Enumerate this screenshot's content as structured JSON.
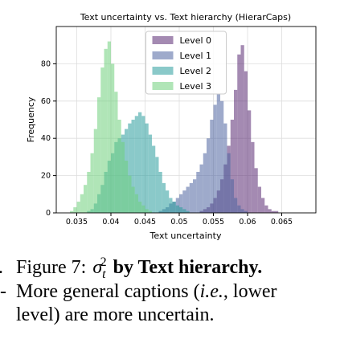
{
  "chart_data": {
    "type": "histogram",
    "title": "Text uncertainty vs. Text hierarchy (HierarCaps)",
    "xlabel": "Text uncertainty",
    "ylabel": "Frequency",
    "bins": [
      0.034,
      0.0345,
      0.035,
      0.0355,
      0.036,
      0.0365,
      0.037,
      0.0375,
      0.038,
      0.0385,
      0.039,
      0.0395,
      0.04,
      0.0405,
      0.041,
      0.0415,
      0.042,
      0.0425,
      0.043,
      0.0435,
      0.044,
      0.0445,
      0.045,
      0.0455,
      0.046,
      0.0465,
      0.047,
      0.0475,
      0.048,
      0.0485,
      0.049,
      0.0495,
      0.05,
      0.0505,
      0.051,
      0.0515,
      0.052,
      0.0525,
      0.053,
      0.0535,
      0.054,
      0.0545,
      0.055,
      0.0555,
      0.056,
      0.0565,
      0.057,
      0.0575,
      0.058,
      0.0585,
      0.059,
      0.0595,
      0.06,
      0.0605,
      0.061,
      0.0615,
      0.062,
      0.0625,
      0.063,
      0.0635,
      0.064,
      0.0645,
      0.065,
      0.0655,
      0.066,
      0.0665,
      0.067
    ],
    "series": [
      {
        "name": "Level 0",
        "color": "#5a2a72",
        "values": [
          0,
          0,
          0,
          0,
          0,
          0,
          0,
          0,
          0,
          0,
          0,
          0,
          0,
          0,
          0,
          0,
          0,
          0,
          0,
          0,
          0,
          0,
          0,
          0,
          0,
          0,
          0,
          0,
          0,
          0,
          0,
          0,
          0,
          0,
          0,
          0,
          0,
          0,
          1,
          2,
          3,
          5,
          8,
          12,
          18,
          26,
          36,
          50,
          66,
          85,
          90,
          76,
          55,
          38,
          24,
          14,
          8,
          4,
          2,
          1,
          1,
          0,
          0,
          0,
          0,
          0
        ]
      },
      {
        "name": "Level 1",
        "color": "#4f64a0",
        "values": [
          0,
          0,
          0,
          0,
          0,
          0,
          0,
          0,
          0,
          0,
          0,
          0,
          0,
          0,
          0,
          0,
          0,
          0,
          0,
          0,
          0,
          0,
          0,
          0,
          0,
          0,
          1,
          2,
          3,
          5,
          6,
          8,
          10,
          12,
          14,
          16,
          18,
          22,
          26,
          32,
          40,
          50,
          58,
          64,
          60,
          48,
          32,
          18,
          8,
          4,
          2,
          1,
          0,
          0,
          0,
          0,
          0,
          0,
          0,
          0,
          0,
          0,
          0,
          0,
          0,
          0
        ]
      },
      {
        "name": "Level 2",
        "color": "#2a9c9c",
        "values": [
          0,
          0,
          0,
          0,
          0,
          1,
          2,
          5,
          10,
          15,
          22,
          28,
          32,
          38,
          40,
          42,
          45,
          48,
          50,
          52,
          54,
          52,
          48,
          42,
          36,
          30,
          22,
          16,
          12,
          8,
          6,
          4,
          3,
          2,
          1,
          0,
          0,
          0,
          0,
          0,
          0,
          0,
          0,
          0,
          0,
          0,
          0,
          0,
          0,
          0,
          0,
          0,
          0,
          0,
          0,
          0,
          0,
          0,
          0,
          0,
          0,
          0,
          0,
          0,
          0,
          0
        ]
      },
      {
        "name": "Level 3",
        "color": "#6fcf7c",
        "values": [
          1,
          3,
          6,
          10,
          15,
          22,
          32,
          45,
          62,
          78,
          88,
          92,
          80,
          65,
          50,
          38,
          28,
          20,
          14,
          10,
          6,
          4,
          2,
          1,
          0,
          0,
          0,
          0,
          0,
          0,
          0,
          0,
          0,
          0,
          0,
          0,
          0,
          0,
          0,
          0,
          0,
          0,
          0,
          0,
          0,
          0,
          0,
          0,
          0,
          0,
          0,
          0,
          0,
          0,
          0,
          0,
          0,
          0,
          0,
          0,
          0,
          0,
          0,
          0,
          0,
          0
        ]
      }
    ],
    "xlim": [
      0.032,
      0.07
    ],
    "xticks": [
      0.035,
      0.04,
      0.045,
      0.05,
      0.055,
      0.06,
      0.065
    ],
    "ylim": [
      0,
      100
    ],
    "yticks": [
      0,
      20,
      40,
      60,
      80
    ],
    "grid": true,
    "legend": "upper center"
  },
  "caption": {
    "fragments": [
      ".",
      "-"
    ],
    "label": "Figure 7:",
    "symbol": "σ",
    "sub": "t",
    "sup": "2",
    "title": "by Text hierarchy.",
    "body": [
      "More general captions (",
      "i.e.",
      ", lower",
      "level) are more uncertain."
    ]
  }
}
